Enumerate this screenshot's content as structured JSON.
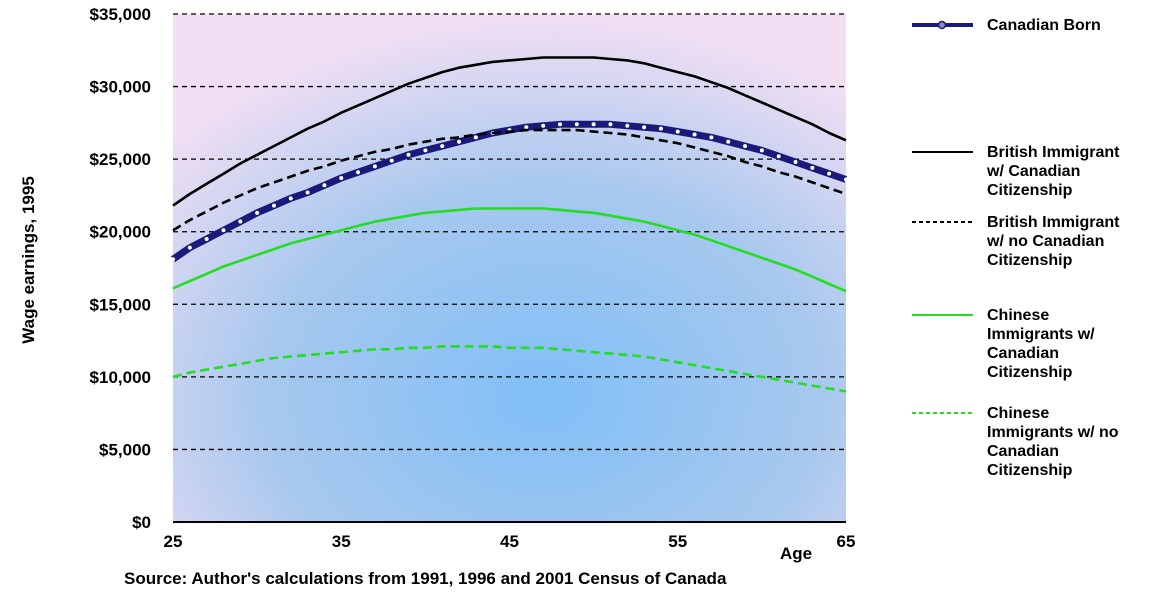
{
  "chart_data": {
    "type": "line",
    "title": "",
    "xlabel": "Age",
    "ylabel": "Wage earnings, 1995",
    "source": "Source: Author's calculations from 1991, 1996 and 2001 Census of Canada",
    "xlim": [
      25,
      65
    ],
    "ylim": [
      0,
      35000
    ],
    "x_ticks": [
      "25",
      "35",
      "45",
      "55",
      "65"
    ],
    "y_ticks": [
      "$0",
      "$5,000",
      "$10,000",
      "$15,000",
      "$20,000",
      "$25,000",
      "$30,000",
      "$35,000"
    ],
    "grid": "horizontal-dashed",
    "legend_position": "right",
    "x": [
      25,
      26,
      27,
      28,
      29,
      30,
      31,
      32,
      33,
      34,
      35,
      36,
      37,
      38,
      39,
      40,
      41,
      42,
      43,
      44,
      45,
      46,
      47,
      48,
      49,
      50,
      51,
      52,
      53,
      54,
      55,
      56,
      57,
      58,
      59,
      60,
      61,
      62,
      63,
      64,
      65
    ],
    "series": [
      {
        "name": "Canadian Born",
        "color": "#1a1a7a",
        "style": "thick-dotted-markers",
        "values": [
          18100,
          18900,
          19500,
          20100,
          20700,
          21300,
          21800,
          22300,
          22700,
          23200,
          23700,
          24100,
          24500,
          24900,
          25300,
          25600,
          25900,
          26200,
          26500,
          26800,
          27000,
          27200,
          27300,
          27400,
          27400,
          27400,
          27400,
          27300,
          27200,
          27100,
          26900,
          26700,
          26500,
          26200,
          25900,
          25600,
          25200,
          24800,
          24400,
          24000,
          23600
        ]
      },
      {
        "name": "British Immigrant w/ Canadian Citizenship",
        "color": "#000000",
        "style": "solid",
        "values": [
          21800,
          22600,
          23300,
          24000,
          24700,
          25300,
          25900,
          26500,
          27100,
          27600,
          28200,
          28700,
          29200,
          29700,
          30200,
          30600,
          31000,
          31300,
          31500,
          31700,
          31800,
          31900,
          32000,
          32000,
          32000,
          32000,
          31900,
          31800,
          31600,
          31300,
          31000,
          30700,
          30300,
          29900,
          29400,
          28900,
          28400,
          27900,
          27400,
          26800,
          26300
        ]
      },
      {
        "name": "British Immigrant w/ no Canadian Citizenship",
        "color": "#000000",
        "style": "dashed",
        "values": [
          20100,
          20800,
          21400,
          22000,
          22500,
          23000,
          23400,
          23800,
          24200,
          24500,
          24900,
          25200,
          25500,
          25700,
          26000,
          26200,
          26400,
          26500,
          26700,
          26800,
          26900,
          27000,
          27000,
          27000,
          27000,
          26900,
          26800,
          26700,
          26500,
          26300,
          26100,
          25800,
          25500,
          25200,
          24800,
          24500,
          24100,
          23800,
          23400,
          23000,
          22600
        ]
      },
      {
        "name": "Chinese Immigrants w/ Canadian Citizenship",
        "color": "#22dd22",
        "style": "solid",
        "values": [
          16100,
          16600,
          17100,
          17600,
          18000,
          18400,
          18800,
          19200,
          19500,
          19800,
          20100,
          20400,
          20700,
          20900,
          21100,
          21300,
          21400,
          21500,
          21600,
          21600,
          21600,
          21600,
          21600,
          21500,
          21400,
          21300,
          21100,
          20900,
          20700,
          20400,
          20100,
          19800,
          19400,
          19000,
          18600,
          18200,
          17800,
          17400,
          16900,
          16400,
          15900
        ]
      },
      {
        "name": "Chinese Immigrants w/ no Canadian Citizenship",
        "color": "#22dd22",
        "style": "dashed",
        "values": [
          10000,
          10300,
          10500,
          10700,
          10900,
          11100,
          11300,
          11400,
          11500,
          11600,
          11700,
          11800,
          11900,
          11900,
          12000,
          12000,
          12100,
          12100,
          12100,
          12100,
          12000,
          12000,
          12000,
          11900,
          11800,
          11700,
          11600,
          11500,
          11400,
          11200,
          11000,
          10800,
          10600,
          10400,
          10200,
          10000,
          9800,
          9600,
          9400,
          9200,
          9000
        ]
      }
    ],
    "legend": [
      {
        "lines": [
          "Canadian Born"
        ]
      },
      {
        "lines": [
          "British Immigrant",
          "w/ Canadian",
          "Citizenship"
        ]
      },
      {
        "lines": [
          "British Immigrant",
          "w/ no Canadian",
          "Citizenship"
        ]
      },
      {
        "lines": [
          "Chinese",
          "Immigrants w/",
          "Canadian",
          "Citizenship"
        ]
      },
      {
        "lines": [
          "Chinese",
          "Immigrants w/ no",
          "Canadian",
          "Citizenship"
        ]
      }
    ]
  }
}
